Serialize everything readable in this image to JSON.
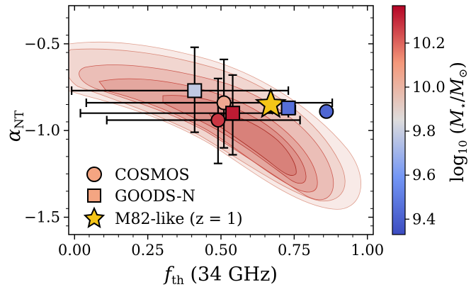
{
  "chart_data": {
    "type": "scatter",
    "xlabel": "f_th (34 GHz)",
    "ylabel": "α_NT",
    "xlim": [
      -0.02,
      1.02
    ],
    "ylim": [
      -1.6,
      -0.28
    ],
    "xticks": [
      0.0,
      0.25,
      0.5,
      0.75,
      1.0
    ],
    "xtick_labels": [
      "0.00",
      "0.25",
      "0.50",
      "0.75",
      "1.00"
    ],
    "yticks": [
      -0.5,
      -1.0,
      -1.5
    ],
    "ytick_labels": [
      "−0.5",
      "−1.0",
      "−1.5"
    ],
    "colorbar": {
      "label": "log10 (M⋆/M⊙)",
      "range": [
        9.33,
        10.37
      ],
      "ticks": [
        9.4,
        9.6,
        9.8,
        10.0,
        10.2
      ],
      "tick_labels": [
        "9.4",
        "9.6",
        "9.8",
        "10.0",
        "10.2"
      ],
      "colormap": "coolwarm"
    },
    "legend": {
      "placement": "lower-left",
      "entries": [
        {
          "label": "COSMOS",
          "marker": "circle"
        },
        {
          "label": "GOODS-N",
          "marker": "square"
        },
        {
          "label": "M82-like (z = 1)",
          "marker": "star"
        }
      ]
    },
    "series": [
      {
        "name": "COSMOS",
        "marker": "circle",
        "points": [
          {
            "x": 0.51,
            "y": -0.84,
            "xerr": [
              0.47,
              0.37
            ],
            "yerr": [
              0.26,
              0.25
            ],
            "logM": 10.05
          },
          {
            "x": 0.49,
            "y": -0.94,
            "xerr": [
              0.38,
              0.28
            ],
            "yerr": [
              0.25,
              0.24
            ],
            "logM": 10.28
          },
          {
            "x": 0.86,
            "y": -0.89,
            "xerr": [
              0.0,
              0.0
            ],
            "yerr": [
              0.0,
              0.0
            ],
            "logM": 9.42
          }
        ]
      },
      {
        "name": "GOODS-N",
        "marker": "square",
        "points": [
          {
            "x": 0.41,
            "y": -0.77,
            "xerr": [
              0.42,
              0.32
            ],
            "yerr": [
              0.24,
              0.25
            ],
            "logM": 9.78
          },
          {
            "x": 0.54,
            "y": -0.9,
            "xerr": [
              0.52,
              0.19
            ],
            "yerr": [
              0.24,
              0.22
            ],
            "logM": 10.33
          },
          {
            "x": 0.73,
            "y": -0.87,
            "xerr": [
              0.0,
              0.0
            ],
            "yerr": [
              0.0,
              0.0
            ],
            "logM": 9.45
          }
        ]
      },
      {
        "name": "M82-like (z = 1)",
        "marker": "star",
        "points": [
          {
            "x": 0.67,
            "y": -0.85,
            "xerr": [
              0.0,
              0.0
            ],
            "yerr": [
              0.0,
              0.0
            ],
            "color": "#f5c518"
          }
        ]
      }
    ],
    "upper_limit_arrows": [
      {
        "x": 0.65,
        "y": -0.88,
        "direction": "left"
      },
      {
        "x": 0.73,
        "y": -0.88,
        "direction": "left"
      }
    ],
    "contours": {
      "description": "2D posterior density regions",
      "color": "#d44a4a"
    }
  }
}
